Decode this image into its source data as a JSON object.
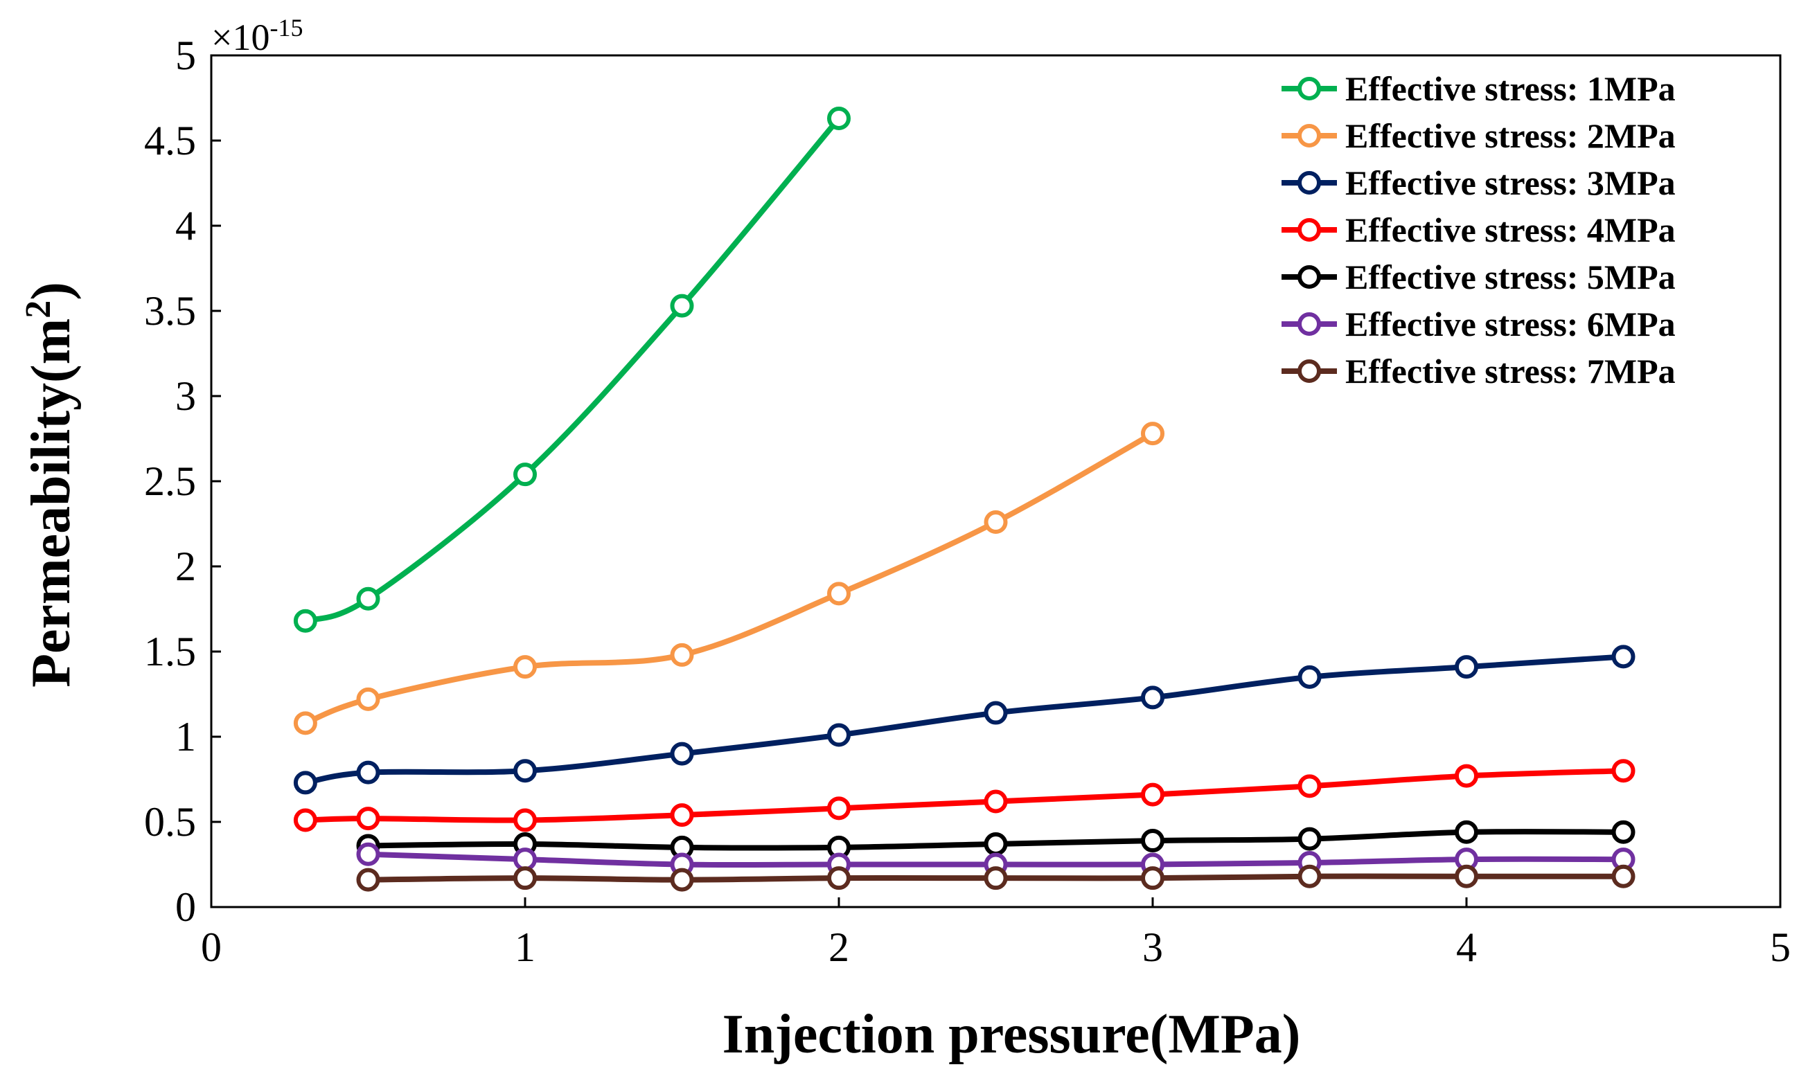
{
  "chart_data": {
    "type": "line",
    "title": "",
    "xlabel": "Injection pressure(MPa)",
    "ylabel_main": "Permeability(m",
    "ylabel_sup": "2",
    "ylabel_close": ")",
    "multiplier_prefix": "×10",
    "multiplier_exp": "-15",
    "xlim": [
      0,
      5
    ],
    "ylim": [
      0,
      5
    ],
    "xticks": [
      0,
      1,
      2,
      3,
      4,
      5
    ],
    "xtick_labels": [
      "0",
      "1",
      "2",
      "3",
      "4",
      "5"
    ],
    "yticks": [
      0,
      0.5,
      1,
      1.5,
      2,
      2.5,
      3,
      3.5,
      4,
      4.5,
      5
    ],
    "ytick_labels": [
      "0",
      "0.5",
      "1",
      "1.5",
      "2",
      "2.5",
      "3",
      "3.5",
      "4",
      "4.5",
      "5"
    ],
    "legend_position": "top-right",
    "series": [
      {
        "name": "Effective stress: 1MPa",
        "color": "#00b050",
        "x": [
          0.3,
          0.5,
          1.0,
          1.5,
          2.0
        ],
        "y": [
          1.68,
          1.81,
          2.54,
          3.53,
          4.63
        ]
      },
      {
        "name": "Effective stress: 2MPa",
        "color": "#f79646",
        "x": [
          0.3,
          0.5,
          1.0,
          1.5,
          2.0,
          2.5,
          3.0
        ],
        "y": [
          1.08,
          1.22,
          1.41,
          1.48,
          1.84,
          2.26,
          2.78
        ]
      },
      {
        "name": "Effective stress: 3MPa",
        "color": "#002060",
        "x": [
          0.3,
          0.5,
          1.0,
          1.5,
          2.0,
          2.5,
          3.0,
          3.5,
          4.0,
          4.5
        ],
        "y": [
          0.73,
          0.79,
          0.8,
          0.9,
          1.01,
          1.14,
          1.23,
          1.35,
          1.41,
          1.47
        ]
      },
      {
        "name": "Effective stress: 4MPa",
        "color": "#ff0000",
        "x": [
          0.3,
          0.5,
          1.0,
          1.5,
          2.0,
          2.5,
          3.0,
          3.5,
          4.0,
          4.5
        ],
        "y": [
          0.51,
          0.52,
          0.51,
          0.54,
          0.58,
          0.62,
          0.66,
          0.71,
          0.77,
          0.8
        ]
      },
      {
        "name": "Effective stress: 5MPa",
        "color": "#000000",
        "x": [
          0.5,
          1.0,
          1.5,
          2.0,
          2.5,
          3.0,
          3.5,
          4.0,
          4.5
        ],
        "y": [
          0.36,
          0.37,
          0.35,
          0.35,
          0.37,
          0.39,
          0.4,
          0.44,
          0.44
        ]
      },
      {
        "name": "Effective stress: 6MPa",
        "color": "#7030a0",
        "x": [
          0.5,
          1.0,
          1.5,
          2.0,
          2.5,
          3.0,
          3.5,
          4.0,
          4.5
        ],
        "y": [
          0.31,
          0.28,
          0.25,
          0.25,
          0.25,
          0.25,
          0.26,
          0.28,
          0.28
        ]
      },
      {
        "name": "Effective stress: 7MPa",
        "color": "#5c2b1f",
        "x": [
          0.5,
          1.0,
          1.5,
          2.0,
          2.5,
          3.0,
          3.5,
          4.0,
          4.5
        ],
        "y": [
          0.16,
          0.17,
          0.16,
          0.17,
          0.17,
          0.17,
          0.18,
          0.18,
          0.18
        ]
      }
    ]
  }
}
